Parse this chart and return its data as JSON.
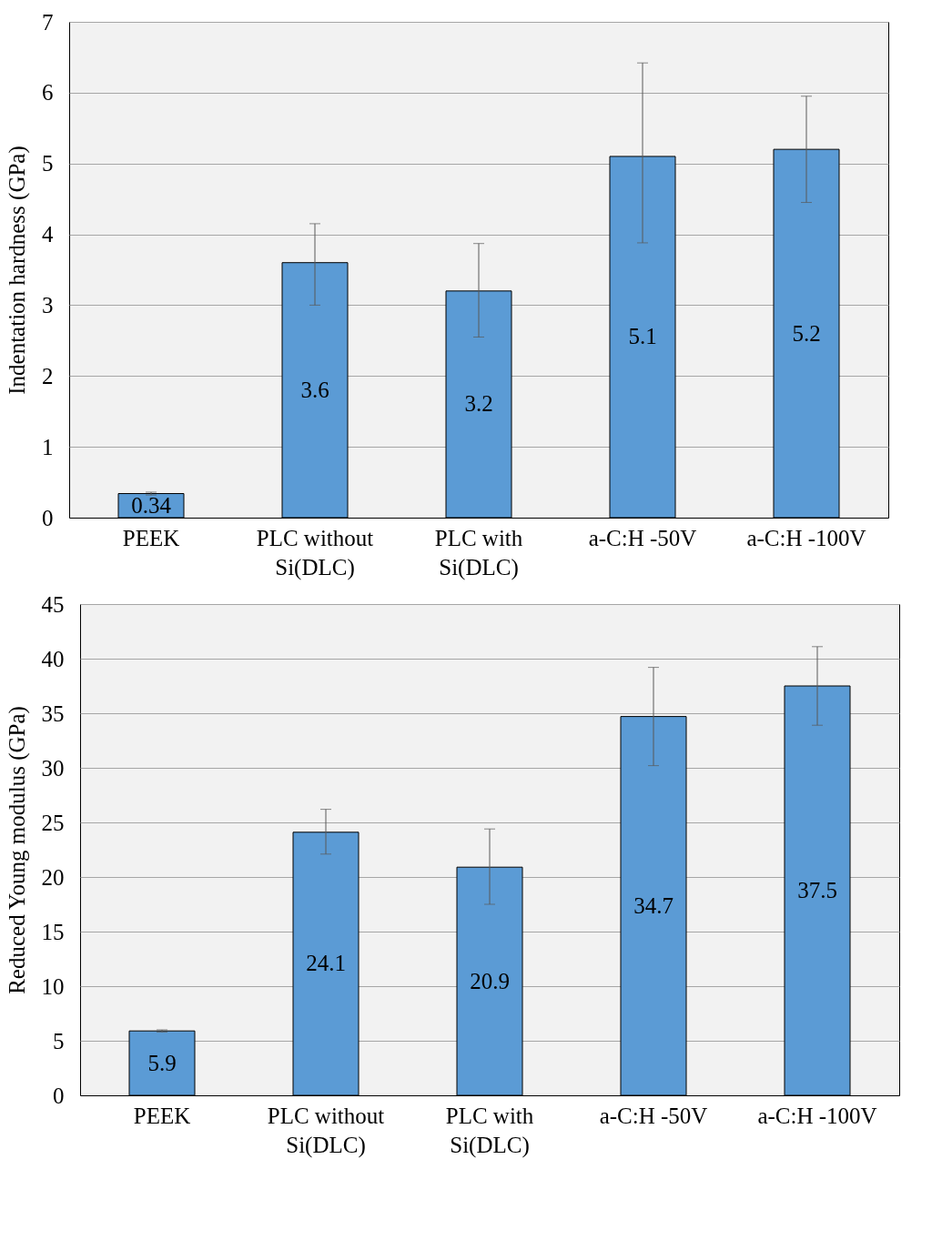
{
  "chart_data": [
    {
      "type": "bar",
      "ylabel": "Indentation  hardness (GPa)",
      "categories": [
        "PEEK",
        "PLC without\nSi(DLC)",
        "PLC with\nSi(DLC)",
        "a-C:H -50V",
        "a-C:H -100V"
      ],
      "values": [
        0.34,
        3.6,
        3.2,
        5.1,
        5.2
      ],
      "color": "#5b9bd5",
      "errors": [
        0.02,
        [
          3.0,
          4.15
        ],
        [
          2.55,
          3.87
        ],
        [
          3.88,
          6.42
        ],
        [
          4.45,
          5.95
        ]
      ],
      "ylim": [
        0,
        7
      ],
      "yticks": [
        0,
        1,
        2,
        3,
        4,
        5,
        6,
        7
      ],
      "grid": "y",
      "data_labels": true
    },
    {
      "type": "bar",
      "ylabel": "Reduced Young modulus (GPa)",
      "categories": [
        "PEEK",
        "PLC  without\nSi(DLC)",
        "PLC with\nSi(DLC)",
        "a-C:H -50V",
        "a-C:H -100V"
      ],
      "values": [
        5.9,
        24.1,
        20.9,
        34.7,
        37.5
      ],
      "color": "#5b9bd5",
      "errors": [
        0.1,
        [
          22.1,
          26.2
        ],
        [
          17.5,
          24.4
        ],
        [
          30.2,
          39.2
        ],
        [
          33.9,
          41.1
        ]
      ],
      "ylim": [
        0,
        45
      ],
      "yticks": [
        0,
        5,
        10,
        15,
        20,
        25,
        30,
        35,
        40,
        45
      ],
      "grid": "y",
      "data_labels": true
    }
  ]
}
